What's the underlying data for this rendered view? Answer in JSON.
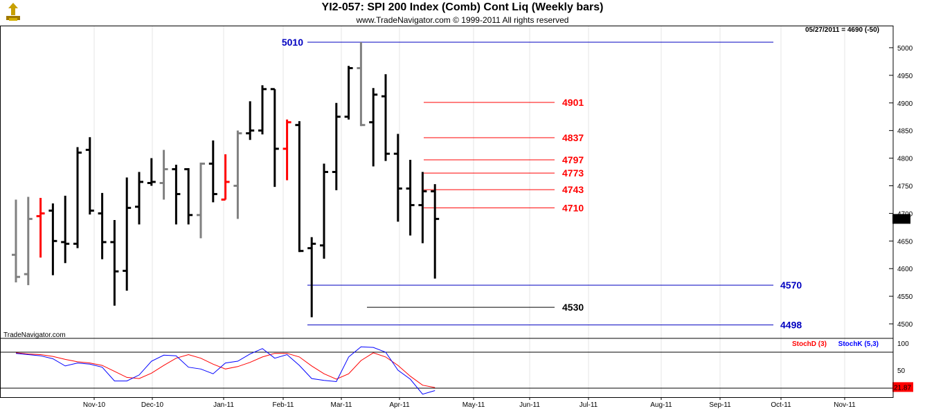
{
  "header": {
    "title": "YI2-057:  SPI 200 Index (Comb) Cont Liq  (Weekly bars)",
    "subtitle": "www.TradeNavigator.com © 1999-2011 All rights reserved"
  },
  "status": {
    "date_readout": "05/27/2011 = 4690 (-50)"
  },
  "watermark": "TradeNavigator.com",
  "chart_data": [
    {
      "type": "ohlc",
      "ylim": [
        4475,
        5040
      ],
      "yticks": [
        "4500",
        "4550",
        "4600",
        "4650",
        "4700",
        "4750",
        "4800",
        "4850",
        "4900",
        "4950",
        "5000"
      ],
      "xtick_labels": [
        "Nov-10",
        "Dec-10",
        "Jan-11",
        "Feb-11",
        "Mar-11",
        "Apr-11",
        "May-11",
        "Jun-11",
        "Jul-11",
        "Aug-11",
        "Sep-11",
        "Oct-11",
        "Nov-11"
      ],
      "last_price_label": "4690",
      "colors": {
        "up": "#808080",
        "down": "#000000",
        "highlight": "#ff0000",
        "support": "#0000c0",
        "resistance": "#ff0000"
      },
      "bars": [
        {
          "o": 4625,
          "h": 4725,
          "l": 4575,
          "c": 4585,
          "color": "#808080"
        },
        {
          "o": 4590,
          "h": 4730,
          "l": 4570,
          "c": 4690,
          "color": "#808080"
        },
        {
          "o": 4695,
          "h": 4728,
          "l": 4620,
          "c": 4700,
          "color": "#ff0000"
        },
        {
          "o": 4705,
          "h": 4718,
          "l": 4588,
          "c": 4650,
          "color": "#000000"
        },
        {
          "o": 4648,
          "h": 4732,
          "l": 4610,
          "c": 4645,
          "color": "#000000"
        },
        {
          "o": 4645,
          "h": 4820,
          "l": 4637,
          "c": 4810,
          "color": "#000000"
        },
        {
          "o": 4815,
          "h": 4838,
          "l": 4698,
          "c": 4705,
          "color": "#000000"
        },
        {
          "o": 4700,
          "h": 4737,
          "l": 4617,
          "c": 4648,
          "color": "#000000"
        },
        {
          "o": 4648,
          "h": 4688,
          "l": 4533,
          "c": 4595,
          "color": "#000000"
        },
        {
          "o": 4596,
          "h": 4765,
          "l": 4560,
          "c": 4710,
          "color": "#000000"
        },
        {
          "o": 4712,
          "h": 4775,
          "l": 4680,
          "c": 4757,
          "color": "#000000"
        },
        {
          "o": 4755,
          "h": 4800,
          "l": 4750,
          "c": 4757,
          "color": "#000000"
        },
        {
          "o": 4755,
          "h": 4815,
          "l": 4725,
          "c": 4780,
          "color": "#808080"
        },
        {
          "o": 4780,
          "h": 4788,
          "l": 4680,
          "c": 4735,
          "color": "#000000"
        },
        {
          "o": 4780,
          "h": 4782,
          "l": 4680,
          "c": 4697,
          "color": "#000000"
        },
        {
          "o": 4697,
          "h": 4792,
          "l": 4655,
          "c": 4790,
          "color": "#808080"
        },
        {
          "o": 4790,
          "h": 4832,
          "l": 4720,
          "c": 4735,
          "color": "#000000"
        },
        {
          "o": 4725,
          "h": 4807,
          "l": 4725,
          "c": 4757,
          "color": "#ff0000"
        },
        {
          "o": 4750,
          "h": 4850,
          "l": 4690,
          "c": 4845,
          "color": "#808080"
        },
        {
          "o": 4845,
          "h": 4903,
          "l": 4833,
          "c": 4850,
          "color": "#000000"
        },
        {
          "o": 4850,
          "h": 4932,
          "l": 4843,
          "c": 4925,
          "color": "#000000"
        },
        {
          "o": 4925,
          "h": 4925,
          "l": 4748,
          "c": 4817,
          "color": "#000000"
        },
        {
          "o": 4817,
          "h": 4870,
          "l": 4760,
          "c": 4865,
          "color": "#ff0000"
        },
        {
          "o": 4860,
          "h": 4867,
          "l": 4630,
          "c": 4632,
          "color": "#000000"
        },
        {
          "o": 4637,
          "h": 4657,
          "l": 4512,
          "c": 4645,
          "color": "#000000"
        },
        {
          "o": 4642,
          "h": 4790,
          "l": 4618,
          "c": 4775,
          "color": "#000000"
        },
        {
          "o": 4775,
          "h": 4900,
          "l": 4742,
          "c": 4875,
          "color": "#000000"
        },
        {
          "o": 4875,
          "h": 4967,
          "l": 4870,
          "c": 4963,
          "color": "#000000"
        },
        {
          "o": 4963,
          "h": 5010,
          "l": 4858,
          "c": 4860,
          "color": "#808080"
        },
        {
          "o": 4865,
          "h": 4927,
          "l": 4785,
          "c": 4915,
          "color": "#000000"
        },
        {
          "o": 4912,
          "h": 4952,
          "l": 4795,
          "c": 4808,
          "color": "#000000"
        },
        {
          "o": 4808,
          "h": 4844,
          "l": 4685,
          "c": 4745,
          "color": "#000000"
        },
        {
          "o": 4745,
          "h": 4797,
          "l": 4660,
          "c": 4715,
          "color": "#000000"
        },
        {
          "o": 4715,
          "h": 4775,
          "l": 4646,
          "c": 4740,
          "color": "#000000"
        },
        {
          "o": 4740,
          "h": 4753,
          "l": 4582,
          "c": 4690,
          "color": "#000000"
        }
      ],
      "levels": [
        {
          "value": 5010,
          "label": "5010",
          "color": "#0000c0",
          "span": "wide",
          "label_side": "left"
        },
        {
          "value": 4901,
          "label": "4901",
          "color": "#ff0000",
          "span": "short",
          "label_side": "right"
        },
        {
          "value": 4837,
          "label": "4837",
          "color": "#ff0000",
          "span": "short",
          "label_side": "right"
        },
        {
          "value": 4797,
          "label": "4797",
          "color": "#ff0000",
          "span": "short",
          "label_side": "right"
        },
        {
          "value": 4773,
          "label": "4773",
          "color": "#ff0000",
          "span": "short",
          "label_side": "right"
        },
        {
          "value": 4743,
          "label": "4743",
          "color": "#ff0000",
          "span": "short",
          "label_side": "right"
        },
        {
          "value": 4710,
          "label": "4710",
          "color": "#ff0000",
          "span": "short",
          "label_side": "right"
        },
        {
          "value": 4570,
          "label": "4570",
          "color": "#0000c0",
          "span": "wide",
          "label_side": "right"
        },
        {
          "value": 4530,
          "label": "4530",
          "color": "#000000",
          "span": "mid",
          "label_side": "right"
        },
        {
          "value": 4498,
          "label": "4498",
          "color": "#0000c0",
          "span": "wide",
          "label_side": "right"
        }
      ]
    },
    {
      "type": "line",
      "title": "Stochastic",
      "ylim": [
        0,
        100
      ],
      "yticks": [
        "50",
        "100"
      ],
      "reference_lines": [
        80,
        20
      ],
      "last_value_label": "21.87",
      "series": [
        {
          "name": "StochD (3)",
          "color": "#ff0000",
          "values": [
            79,
            77,
            76,
            73,
            68,
            64,
            62,
            58,
            48,
            38,
            36,
            45,
            58,
            70,
            76,
            70,
            60,
            52,
            56,
            63,
            72,
            78,
            78,
            72,
            57,
            44,
            35,
            44,
            66,
            79,
            72,
            58,
            40,
            25,
            21
          ]
        },
        {
          "name": "StochK (5,3)",
          "color": "#0000ff",
          "values": [
            78,
            76,
            74,
            69,
            57,
            62,
            60,
            55,
            32,
            32,
            42,
            65,
            75,
            74,
            55,
            52,
            44,
            62,
            65,
            77,
            86,
            70,
            76,
            58,
            36,
            33,
            31,
            72,
            89,
            88,
            80,
            50,
            35,
            10,
            16
          ]
        }
      ]
    }
  ]
}
